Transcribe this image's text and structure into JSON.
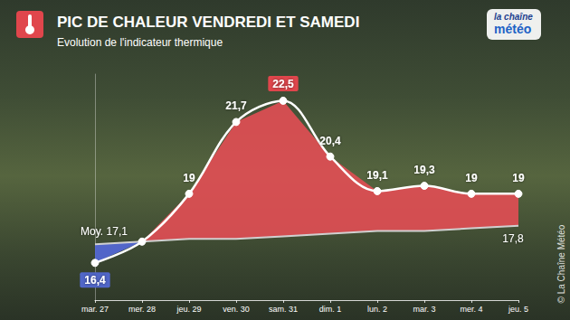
{
  "chart_data": {
    "type": "line",
    "title": "PIC DE CHALEUR VENDREDI ET SAMEDI",
    "subtitle": "Evolution de l'indicateur thermique",
    "categories": [
      "mar. 27",
      "mer. 28",
      "jeu. 29",
      "ven. 30",
      "sam. 31",
      "dim. 1",
      "lun. 2",
      "mar. 3",
      "mer. 4",
      "jeu. 5"
    ],
    "series": [
      {
        "color": "#ffffff",
        "marker": "circle",
        "values": [
          16.4,
          17.2,
          19,
          21.7,
          22.5,
          20.4,
          19.1,
          19.3,
          19,
          19
        ],
        "value_labels": [
          "16,4",
          null,
          "19",
          "21,7",
          "22,5",
          "20,4",
          "19,1",
          "19,3",
          "19",
          "19"
        ]
      },
      {
        "color": "#d0d0d0",
        "marker": "none",
        "values": [
          17.1,
          17.2,
          17.3,
          17.3,
          17.4,
          17.5,
          17.6,
          17.6,
          17.7,
          17.8
        ],
        "value_labels": [
          "Moy. 17,1",
          null,
          null,
          null,
          null,
          null,
          null,
          null,
          null,
          "17,8"
        ]
      }
    ],
    "ylim": [
      15,
      23.5
    ],
    "yticks": [],
    "grid": false,
    "data_labels": true,
    "tick_labels": "x",
    "logo": [
      "la chaîne",
      "météo"
    ],
    "source": "© La Chaîne Météo"
  }
}
